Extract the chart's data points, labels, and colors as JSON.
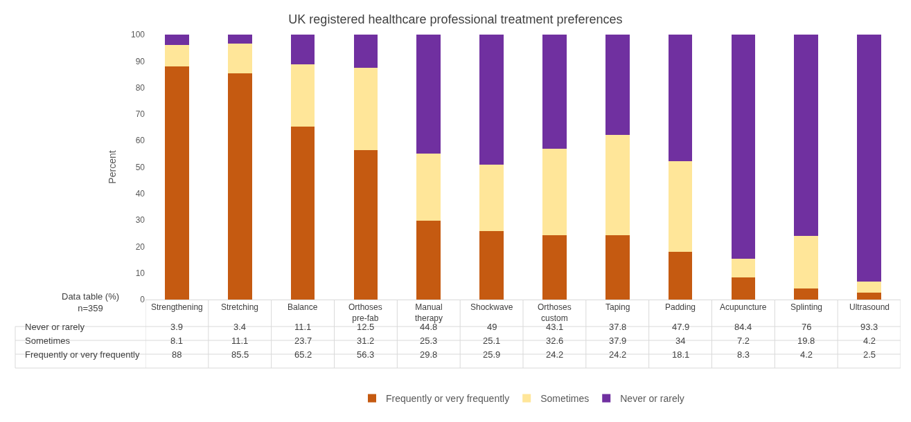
{
  "chart_data": {
    "type": "bar",
    "title": "UK registered healthcare professional treatment preferences",
    "categories": [
      "Strengthening",
      "Stretching",
      "Balance",
      "Orthoses pre-fab",
      "Manual therapy",
      "Shockwave",
      "Orthoses custom",
      "Taping",
      "Padding",
      "Acupuncture",
      "Splinting",
      "Ultrasound"
    ],
    "series": [
      {
        "name": "Frequently or very frequently",
        "color": "#c55a11",
        "values": [
          88,
          85.5,
          65.2,
          56.3,
          29.8,
          25.9,
          24.2,
          24.2,
          18.1,
          8.3,
          4.2,
          2.5
        ]
      },
      {
        "name": "Sometimes",
        "color": "#ffe699",
        "values": [
          8.1,
          11.1,
          23.7,
          31.2,
          25.3,
          25.1,
          32.6,
          37.9,
          34,
          7.2,
          19.8,
          4.2
        ]
      },
      {
        "name": "Never or rarely",
        "color": "#7030a0",
        "values": [
          3.9,
          3.4,
          11.1,
          12.5,
          44.8,
          49,
          43.1,
          37.8,
          47.9,
          84.4,
          76,
          93.3
        ]
      }
    ],
    "stacked": true,
    "ylabel": "Percent",
    "ylim": [
      0,
      100
    ],
    "yticks": [
      0,
      10,
      20,
      30,
      40,
      50,
      60,
      70,
      80,
      90,
      100
    ],
    "grid": false,
    "legend": "bottom",
    "data_labels": true,
    "annotations": [
      "Data table (%)\nn=359"
    ]
  }
}
